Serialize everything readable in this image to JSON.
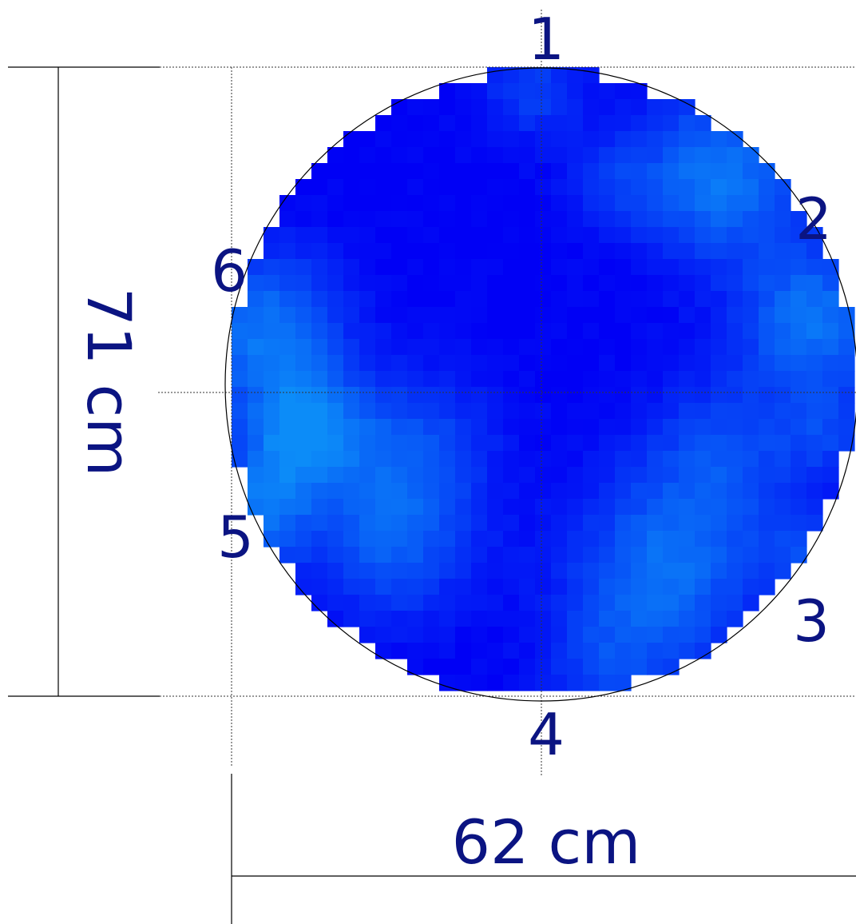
{
  "figure": {
    "height_dimension_label": "71 cm",
    "width_dimension_label": "62 cm",
    "point_labels": [
      "1",
      "2",
      "3",
      "4",
      "5",
      "6"
    ]
  },
  "heatmap": {
    "colors": {
      "base": "#0000f5",
      "light": "#0c8cf8",
      "label": "#0b1482",
      "lines": "#000000"
    }
  }
}
